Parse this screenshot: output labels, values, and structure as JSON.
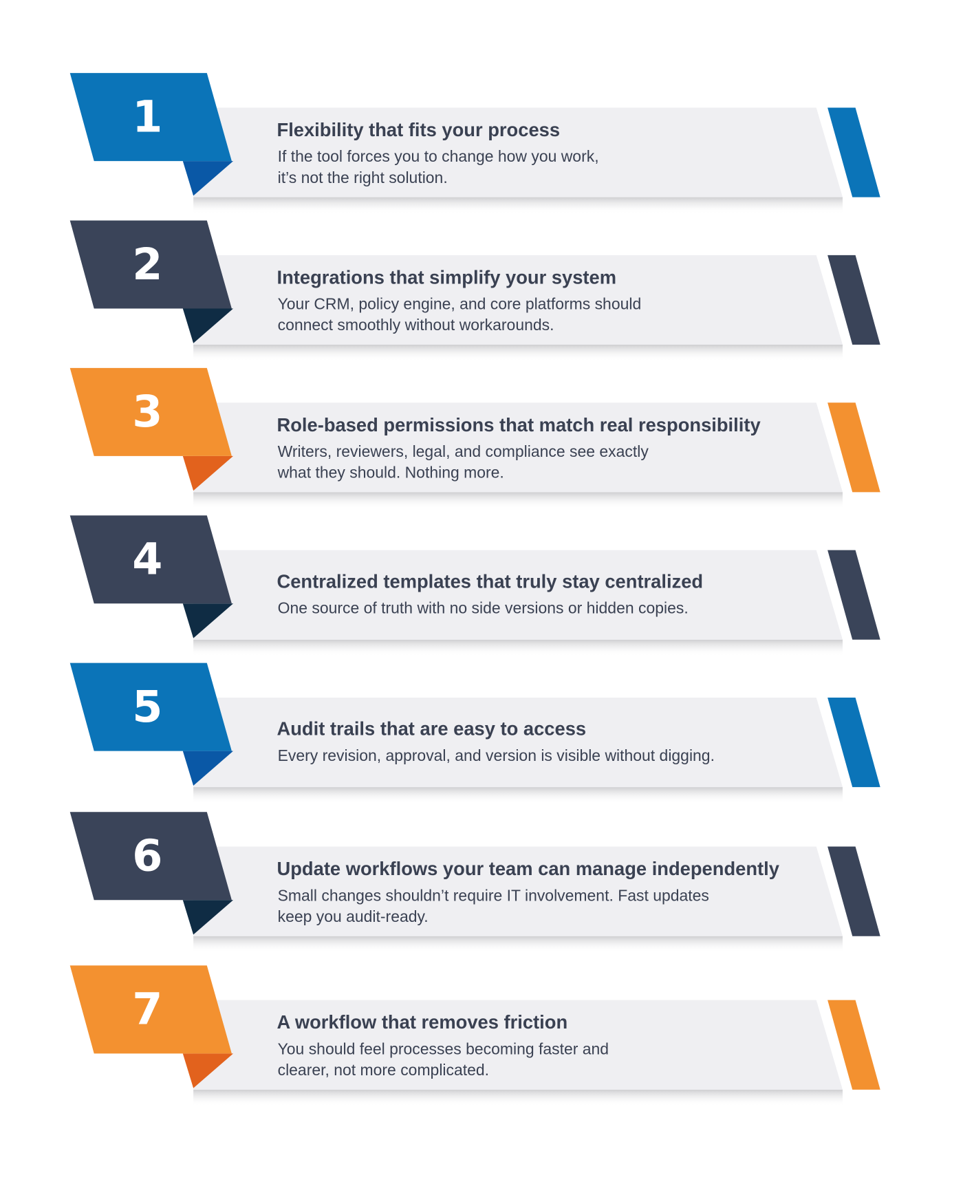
{
  "colors": {
    "blue": "#0b74b8",
    "blue_fold": "#0a58a6",
    "navy": "#3a4459",
    "navy_fold": "#0f2c44",
    "orange": "#f39130",
    "orange_fold": "#e2621d",
    "band": "#efeff2",
    "text": "#3a4152"
  },
  "items": [
    {
      "number": "1",
      "color": "blue",
      "title": "Flexibility that fits your process",
      "lines": [
        "If the tool forces you to change how you work,",
        "it’s not the right solution."
      ]
    },
    {
      "number": "2",
      "color": "navy",
      "title": "Integrations that simplify your system",
      "lines": [
        "Your CRM, policy engine, and core platforms should",
        "connect smoothly without workarounds."
      ]
    },
    {
      "number": "3",
      "color": "orange",
      "title": "Role-based permissions that match real responsibility",
      "lines": [
        "Writers, reviewers, legal, and compliance see exactly",
        "what they should. Nothing more."
      ]
    },
    {
      "number": "4",
      "color": "navy",
      "title": "Centralized templates that truly stay centralized",
      "lines": [
        "One source of truth with no side versions or hidden copies."
      ]
    },
    {
      "number": "5",
      "color": "blue",
      "title": "Audit trails that are easy to access",
      "lines": [
        "Every revision, approval, and version is visible without digging."
      ]
    },
    {
      "number": "6",
      "color": "navy",
      "title": "Update workflows your team can manage independently",
      "lines": [
        "Small changes shouldn’t require IT involvement. Fast updates",
        "keep you audit-ready."
      ]
    },
    {
      "number": "7",
      "color": "orange",
      "title": "A workflow that removes friction",
      "lines": [
        "You should feel processes becoming faster and",
        "clearer, not more complicated."
      ]
    }
  ]
}
